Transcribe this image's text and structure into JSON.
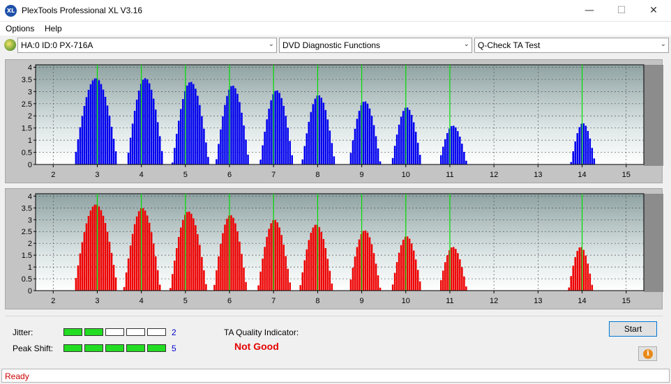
{
  "window": {
    "title": "PlexTools Professional XL V3.16",
    "icon_text": "XL",
    "minimize_glyph": "—",
    "maximize_glyph": "☐",
    "close_glyph": "✕"
  },
  "menu": {
    "options": "Options",
    "help": "Help"
  },
  "toolbar": {
    "drive": "HA:0 ID:0  PX-716A",
    "function": "DVD Diagnostic Functions",
    "test": "Q-Check TA Test",
    "arrow_glyph": "⌄"
  },
  "charts_common": {
    "y_ticks": [
      "0",
      "0.5",
      "1",
      "1.5",
      "2",
      "2.5",
      "3",
      "3.5",
      "4"
    ],
    "x_ticks": [
      "2",
      "3",
      "4",
      "5",
      "6",
      "7",
      "8",
      "9",
      "10",
      "11",
      "12",
      "13",
      "14",
      "15"
    ],
    "xlim": [
      1.6,
      15.4
    ],
    "ylim": [
      0,
      4.1
    ],
    "grid": true,
    "marker_color": "#00dd00",
    "marker_positions": [
      3,
      4,
      5,
      6,
      7,
      8,
      9,
      10,
      11,
      14
    ]
  },
  "chart_data": [
    {
      "type": "bar",
      "name": "upper",
      "color": "#0000ee",
      "peaks": [
        {
          "center": 2.95,
          "height": 3.55,
          "width": 0.5
        },
        {
          "center": 4.07,
          "height": 3.55,
          "width": 0.42
        },
        {
          "center": 5.1,
          "height": 3.4,
          "width": 0.42
        },
        {
          "center": 6.05,
          "height": 3.25,
          "width": 0.38
        },
        {
          "center": 7.05,
          "height": 3.05,
          "width": 0.38
        },
        {
          "center": 8.0,
          "height": 2.85,
          "width": 0.38
        },
        {
          "center": 9.05,
          "height": 2.6,
          "width": 0.36
        },
        {
          "center": 10.0,
          "height": 2.35,
          "width": 0.34
        },
        {
          "center": 11.05,
          "height": 1.6,
          "width": 0.32
        },
        {
          "center": 14.0,
          "height": 1.7,
          "width": 0.28
        }
      ]
    },
    {
      "type": "bar",
      "name": "lower",
      "color": "#ee0000",
      "peaks": [
        {
          "center": 2.95,
          "height": 3.65,
          "width": 0.5
        },
        {
          "center": 4.0,
          "height": 3.5,
          "width": 0.42
        },
        {
          "center": 5.05,
          "height": 3.35,
          "width": 0.42
        },
        {
          "center": 6.0,
          "height": 3.2,
          "width": 0.38
        },
        {
          "center": 7.0,
          "height": 3.0,
          "width": 0.38
        },
        {
          "center": 7.95,
          "height": 2.8,
          "width": 0.38
        },
        {
          "center": 9.05,
          "height": 2.55,
          "width": 0.36
        },
        {
          "center": 10.0,
          "height": 2.3,
          "width": 0.34
        },
        {
          "center": 11.05,
          "height": 1.85,
          "width": 0.32
        },
        {
          "center": 13.95,
          "height": 1.85,
          "width": 0.28
        }
      ]
    }
  ],
  "panel": {
    "jitter_label": "Jitter:",
    "jitter_value": "2",
    "jitter_level": 2,
    "peak_label": "Peak Shift:",
    "peak_value": "5",
    "peak_level": 5,
    "meter_segments": 5,
    "ta_label": "TA Quality Indicator:",
    "ta_result": "Not Good",
    "start": "Start",
    "info_glyph": "i"
  },
  "status": {
    "text": "Ready"
  }
}
